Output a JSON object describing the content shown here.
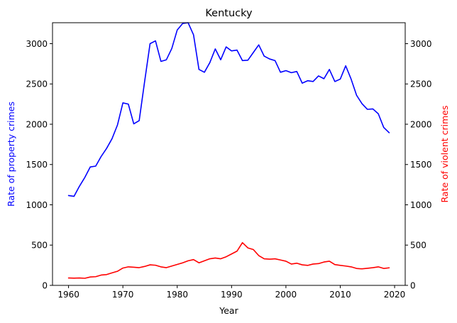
{
  "chart_data": {
    "type": "line",
    "title": "Kentucky",
    "xlabel": "Year",
    "ylabel_left": "Rate of property crimes",
    "ylabel_right": "Rate of violent crimes",
    "xlim": [
      1957.05,
      2021.95
    ],
    "ylim_left": [
      0,
      3260
    ],
    "ylim_right": [
      0,
      3260
    ],
    "x_ticks": [
      1960,
      1970,
      1980,
      1990,
      2000,
      2010,
      2020
    ],
    "y_ticks_left": [
      0,
      500,
      1000,
      1500,
      2000,
      2500,
      3000
    ],
    "y_ticks_right": [
      0,
      500,
      1000,
      1500,
      2000,
      2500,
      3000
    ],
    "grid": false,
    "colors": {
      "property": "#0000ff",
      "violent": "#ff0000",
      "left_label": "#0000ff",
      "right_label": "#ff0000"
    },
    "x": [
      1960,
      1961,
      1962,
      1963,
      1964,
      1965,
      1966,
      1967,
      1968,
      1969,
      1970,
      1971,
      1972,
      1973,
      1974,
      1975,
      1976,
      1977,
      1978,
      1979,
      1980,
      1981,
      1982,
      1983,
      1984,
      1985,
      1986,
      1987,
      1988,
      1989,
      1990,
      1991,
      1992,
      1993,
      1994,
      1995,
      1996,
      1997,
      1998,
      1999,
      2000,
      2001,
      2002,
      2003,
      2004,
      2005,
      2006,
      2007,
      2008,
      2009,
      2010,
      2011,
      2012,
      2013,
      2014,
      2015,
      2016,
      2017,
      2018,
      2019
    ],
    "series": [
      {
        "key": "property",
        "axis": "left",
        "values": [
          1115,
          1105,
          1230,
          1340,
          1470,
          1480,
          1600,
          1700,
          1820,
          1990,
          2265,
          2250,
          2005,
          2045,
          2530,
          3000,
          3035,
          2780,
          2800,
          2940,
          3170,
          3250,
          3260,
          3110,
          2680,
          2645,
          2765,
          2935,
          2800,
          2960,
          2910,
          2920,
          2790,
          2795,
          2890,
          2985,
          2845,
          2810,
          2790,
          2645,
          2665,
          2640,
          2655,
          2510,
          2540,
          2530,
          2600,
          2565,
          2680,
          2530,
          2560,
          2725,
          2560,
          2360,
          2255,
          2185,
          2190,
          2130,
          1960,
          1895
        ]
      },
      {
        "key": "violent",
        "axis": "right",
        "values": [
          92,
          90,
          92,
          88,
          104,
          108,
          128,
          134,
          155,
          175,
          215,
          230,
          225,
          220,
          235,
          255,
          250,
          230,
          220,
          240,
          260,
          280,
          305,
          320,
          280,
          305,
          330,
          340,
          330,
          355,
          390,
          425,
          530,
          465,
          445,
          370,
          330,
          325,
          330,
          315,
          300,
          265,
          275,
          255,
          248,
          265,
          270,
          290,
          300,
          258,
          248,
          240,
          230,
          210,
          205,
          212,
          220,
          230,
          210,
          218
        ]
      }
    ]
  }
}
